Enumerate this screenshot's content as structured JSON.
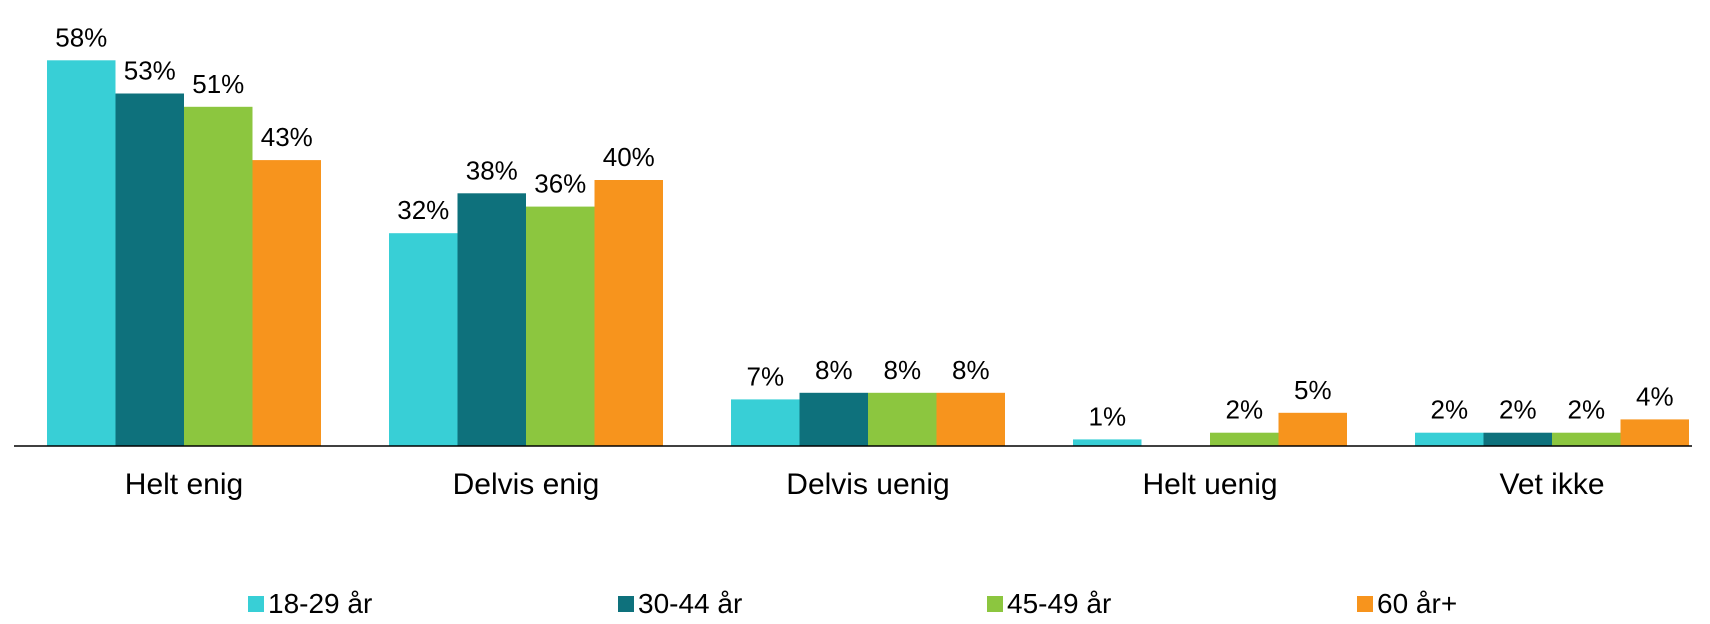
{
  "chart_data": {
    "type": "bar",
    "title": "",
    "xlabel": "",
    "ylabel": "",
    "ylim": [
      0,
      60
    ],
    "grid": false,
    "legend_position": "bottom",
    "categories": [
      "Helt enig",
      "Delvis enig",
      "Delvis uenig",
      "Helt uenig",
      "Vet ikke"
    ],
    "series": [
      {
        "name": "18-29 år",
        "color": "#38CFD6",
        "values": [
          58,
          32,
          7,
          1,
          2
        ],
        "labels": [
          "58%",
          "32%",
          "7%",
          "1%",
          "2%"
        ]
      },
      {
        "name": "30-44 år",
        "color": "#0E717C",
        "values": [
          53,
          38,
          8,
          0,
          2
        ],
        "labels": [
          "53%",
          "38%",
          "8%",
          "",
          "2%"
        ]
      },
      {
        "name": "45-49 år",
        "color": "#8CC63F",
        "values": [
          51,
          36,
          8,
          2,
          2
        ],
        "labels": [
          "51%",
          "36%",
          "8%",
          "2%",
          "2%"
        ]
      },
      {
        "name": "60 år+",
        "color": "#F7941D",
        "values": [
          43,
          40,
          8,
          5,
          4
        ],
        "labels": [
          "43%",
          "40%",
          "8%",
          "5%",
          "4%"
        ]
      }
    ]
  }
}
